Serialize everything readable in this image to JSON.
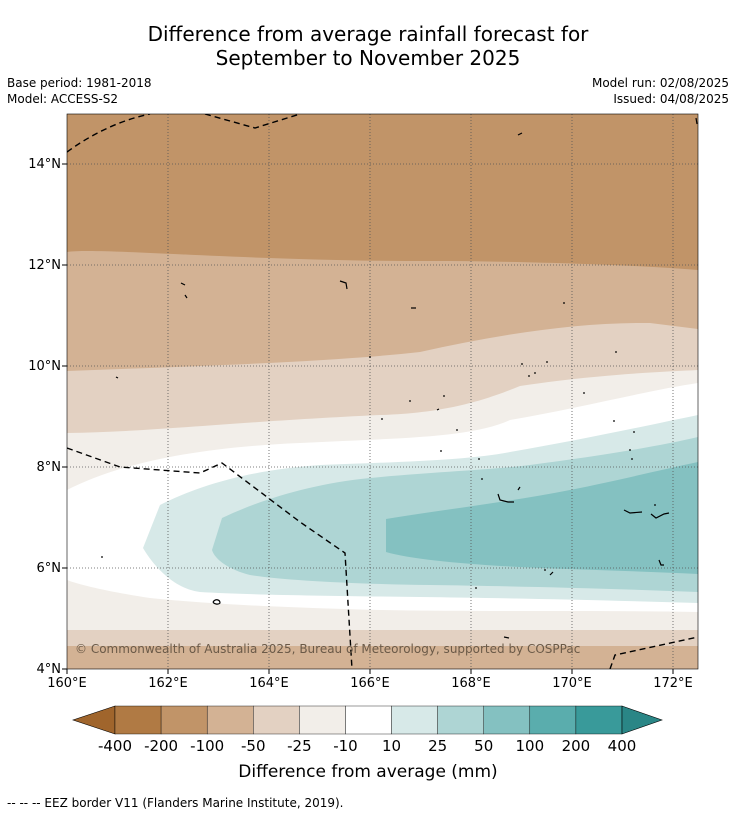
{
  "title_line1": "Difference from average rainfall forecast for",
  "title_line2": "September to November 2025",
  "meta_left": [
    "Base period: 1981-2018",
    "Model: ACCESS-S2"
  ],
  "meta_right": [
    "Model run: 02/08/2025",
    "Issued: 04/08/2025"
  ],
  "copyright": "© Commonwealth of Australia 2025, Bureau of Meteorology, supported by COSPPac",
  "footnote": "-- -- -- EEZ border V11 (Flanders Marine Institute, 2019).",
  "map": {
    "lon_range": [
      160,
      172.5
    ],
    "lat_range": [
      4,
      15
    ],
    "x_ticks": [
      "160°E",
      "162°E",
      "164°E",
      "166°E",
      "168°E",
      "170°E",
      "172°E"
    ],
    "y_ticks": [
      "4°N",
      "6°N",
      "8°N",
      "10°N",
      "12°N",
      "14°N"
    ]
  },
  "colorbar": {
    "label": "Difference from average (mm)",
    "tick_labels": [
      "-400",
      "-200",
      "-100",
      "-50",
      "-25",
      "-10",
      "10",
      "25",
      "50",
      "100",
      "200",
      "400"
    ],
    "colors": [
      "#a0652c",
      "#b07a44",
      "#c19468",
      "#d3b294",
      "#e3d1c2",
      "#f2eee9",
      "#ffffff",
      "#d7e9e8",
      "#aed5d4",
      "#84c1c1",
      "#5aadad",
      "#399a9a",
      "#2a8686"
    ]
  }
}
